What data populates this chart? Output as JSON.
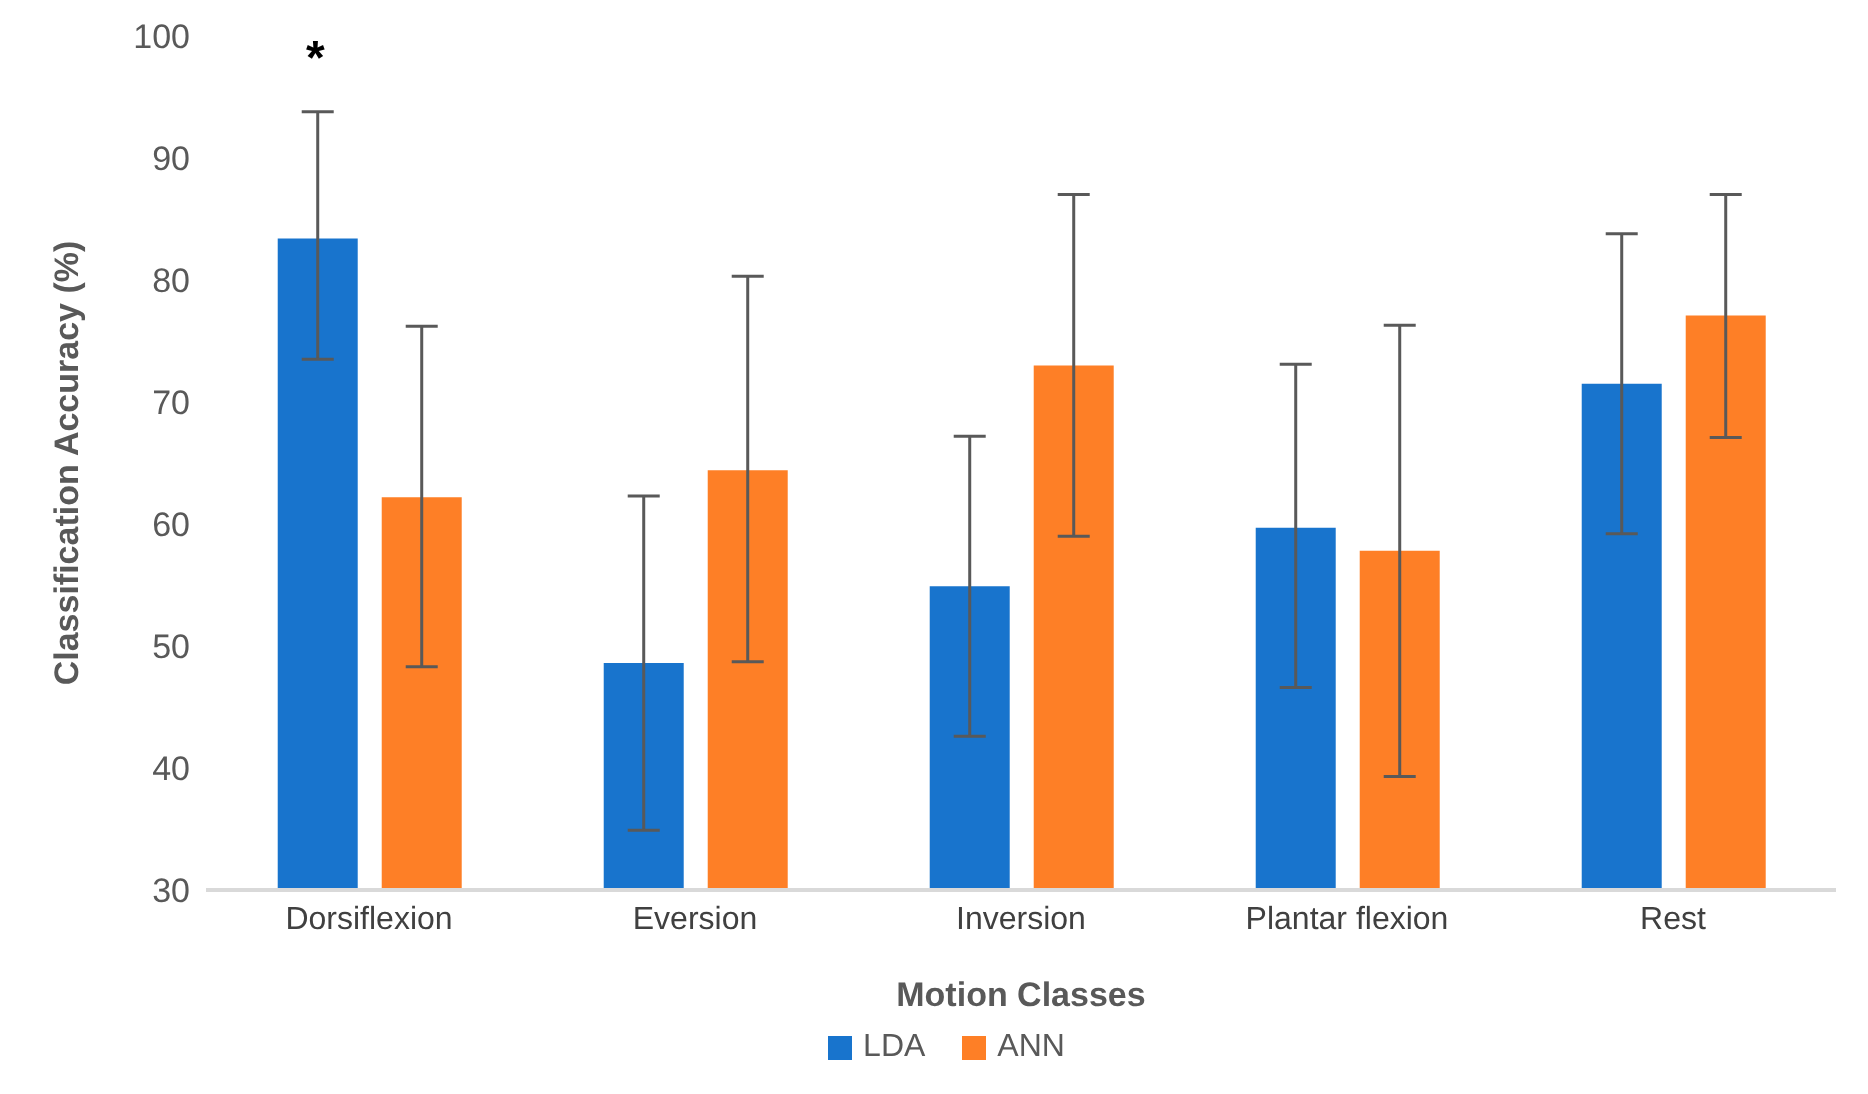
{
  "chart_data": {
    "type": "bar",
    "xlabel": "Motion Classes",
    "ylabel": "Classification Accuracy  (%)",
    "categories": [
      "Dorsiflexion",
      "Eversion",
      "Inversion",
      "Plantar flexion",
      "Rest"
    ],
    "series": [
      {
        "name": "LDA",
        "color": "#1874cd",
        "values": [
          83.4,
          48.6,
          54.9,
          59.7,
          71.5
        ],
        "errors": [
          [
            73.5,
            93.8
          ],
          [
            34.9,
            62.3
          ],
          [
            42.6,
            67.2
          ],
          [
            46.6,
            73.1
          ],
          [
            59.2,
            83.8
          ]
        ]
      },
      {
        "name": "ANN",
        "color": "#fe7f26",
        "values": [
          62.2,
          64.4,
          73.0,
          57.8,
          77.1
        ],
        "errors": [
          [
            48.3,
            76.2
          ],
          [
            48.7,
            80.3
          ],
          [
            59.0,
            87.0
          ],
          [
            39.3,
            76.3
          ],
          [
            67.1,
            87.0
          ]
        ]
      }
    ],
    "ylim": [
      30,
      100
    ],
    "yticks": [
      30,
      40,
      50,
      60,
      70,
      80,
      90,
      100
    ],
    "grid": false,
    "legend": "bottom",
    "annotations": [
      "*"
    ]
  }
}
